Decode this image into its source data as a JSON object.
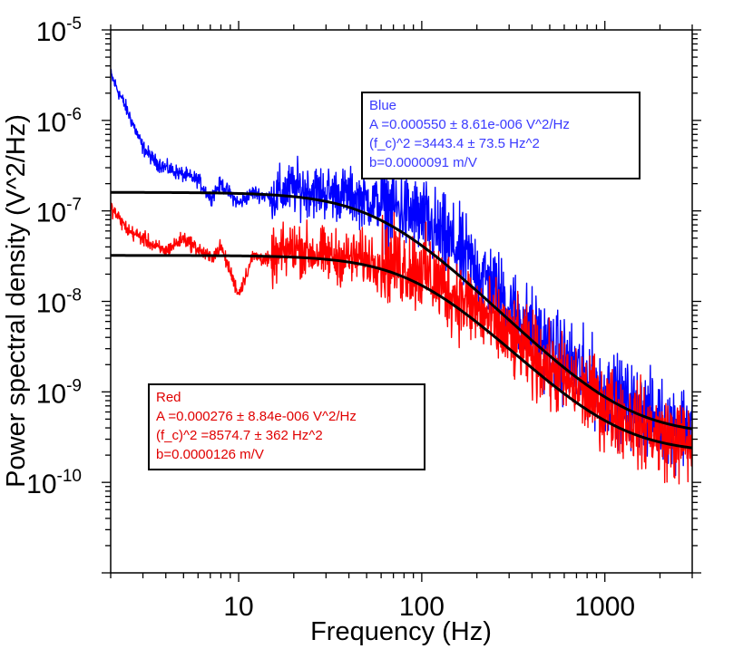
{
  "chart_data": {
    "type": "line",
    "xscale": "log",
    "yscale": "log",
    "xlim": [
      2,
      3000
    ],
    "ylim": [
      1e-11,
      1e-05
    ],
    "xlabel": "Frequency (Hz)",
    "ylabel": "Power spectral density (V^2/Hz)",
    "x_ticks": [
      {
        "value": 10,
        "label": "10"
      },
      {
        "value": 100,
        "label": "100"
      },
      {
        "value": 1000,
        "label": "1000"
      }
    ],
    "y_ticks": [
      {
        "value": 1e-05,
        "base": "10",
        "exp": "-5"
      },
      {
        "value": 1e-06,
        "base": "10",
        "exp": "-6"
      },
      {
        "value": 1e-07,
        "base": "10",
        "exp": "-7"
      },
      {
        "value": 1e-08,
        "base": "10",
        "exp": "-8"
      },
      {
        "value": 1e-09,
        "base": "10",
        "exp": "-9"
      },
      {
        "value": 1e-10,
        "base": "10",
        "exp": "-10"
      }
    ],
    "grid": false,
    "series": [
      {
        "name": "Blue",
        "color": "#0000ff",
        "kind": "measured",
        "x": [
          2,
          2.5,
          3,
          3.5,
          4,
          5,
          6,
          7,
          8,
          10,
          12,
          15,
          20,
          25,
          30,
          40,
          50,
          70,
          100,
          150,
          200,
          300,
          500,
          700,
          1000,
          1500,
          2000,
          3000
        ],
        "y": [
          3.2e-06,
          1.2e-06,
          5e-07,
          3.5e-07,
          3e-07,
          2.5e-07,
          2.2e-07,
          1.4e-07,
          2e-07,
          1.2e-07,
          1.6e-07,
          1.4e-07,
          1.8e-07,
          1.7e-07,
          1.6e-07,
          1.5e-07,
          1.3e-07,
          1.1e-07,
          8e-08,
          4e-08,
          2.3e-08,
          9e-09,
          3e-09,
          1.8e-09,
          1e-09,
          6.5e-10,
          4.8e-10,
          4e-10
        ]
      },
      {
        "name": "Red",
        "color": "#ff0000",
        "kind": "measured",
        "x": [
          2,
          2.5,
          3,
          3.5,
          4,
          5,
          6,
          7,
          8,
          10,
          12,
          15,
          20,
          25,
          30,
          40,
          50,
          70,
          100,
          150,
          200,
          300,
          500,
          700,
          1000,
          1500,
          2000,
          3000
        ],
        "y": [
          1.1e-07,
          6e-08,
          5e-08,
          4e-08,
          3.6e-08,
          5e-08,
          3.8e-08,
          3e-08,
          4e-08,
          1.2e-08,
          3.2e-08,
          2.8e-08,
          4e-08,
          3.5e-08,
          3.2e-08,
          3e-08,
          3e-08,
          2.6e-08,
          2.2e-08,
          1.2e-08,
          8e-09,
          4e-09,
          1.8e-09,
          1.1e-09,
          7e-10,
          4.5e-10,
          3.3e-10,
          2.6e-10
        ]
      },
      {
        "name": "",
        "color": "#000000",
        "kind": "fit",
        "A": 0.00055,
        "fc2": 3443.4,
        "b": 9.1e-06,
        "noise_floor": 3.3e-10
      },
      {
        "name": "",
        "color": "#000000",
        "kind": "fit",
        "A": 0.000276,
        "fc2": 8574.7,
        "b": 1.26e-05,
        "noise_floor": 2.1e-10
      }
    ]
  },
  "legend": {
    "blue": {
      "title": "Blue",
      "line1": "A =0.000550 ± 8.61e-006 V^2/Hz",
      "line2": "(f_c)^2 =3443.4 ± 73.5 Hz^2",
      "line3": "b=0.0000091 m/V",
      "color": "#3a3aff"
    },
    "red": {
      "title": "Red",
      "line1": "A =0.000276 ± 8.84e-006 V^2/Hz",
      "line2": "(f_c)^2 =8574.7 ± 362 Hz^2",
      "line3": "b=0.0000126 m/V",
      "color": "#e00000"
    }
  }
}
